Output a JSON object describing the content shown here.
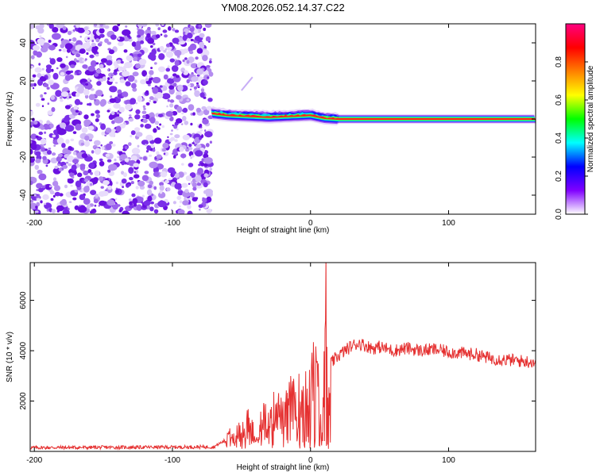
{
  "title": "YM08.2026.052.14.37.C22",
  "chart_data": [
    {
      "type": "heatmap",
      "name": "spectrogram",
      "xlabel": "Height of straight line (km)",
      "ylabel": "Frequency (Hz)",
      "xlim": [
        -203,
        163
      ],
      "ylim": [
        -50,
        50
      ],
      "x_ticks": [
        -200,
        -100,
        0,
        100
      ],
      "x_tick_labels": [
        "-200",
        "-100",
        "0",
        "100"
      ],
      "y_ticks": [
        -40,
        -20,
        0,
        20,
        40
      ],
      "y_tick_labels": [
        "-40",
        "-20",
        "0",
        "20",
        "40"
      ],
      "noise_region_x": [
        -203,
        -72
      ],
      "signal_region_x": [
        -72,
        163
      ],
      "signal_center_frequency_hz": [
        {
          "x": -72,
          "f": 3
        },
        {
          "x": -60,
          "f": 2
        },
        {
          "x": -45,
          "f": 1.5
        },
        {
          "x": -30,
          "f": 1
        },
        {
          "x": -15,
          "f": 1.5
        },
        {
          "x": 0,
          "f": 2
        },
        {
          "x": 10,
          "f": 0.5
        },
        {
          "x": 20,
          "f": 0
        },
        {
          "x": 163,
          "f": 0
        }
      ],
      "colorbar": {
        "label": "Normalized spectral amplitude",
        "range": [
          0,
          1
        ],
        "ticks": [
          0.0,
          0.2,
          0.4,
          0.6,
          0.8
        ],
        "tick_labels": [
          "0.0",
          "0.2",
          "0.4",
          "0.6",
          "0.8"
        ],
        "colors": [
          "#ffffff",
          "#8000ff",
          "#0000ff",
          "#00ffff",
          "#00ff00",
          "#ffff00",
          "#ff8000",
          "#ff0000",
          "#ff0080"
        ]
      }
    },
    {
      "type": "line",
      "name": "snr",
      "xlabel": "Height of straight line (km)",
      "ylabel": "SNR (10 * v/v)",
      "xlim": [
        -203,
        163
      ],
      "ylim": [
        0,
        7500
      ],
      "x_ticks": [
        -200,
        -100,
        0,
        100
      ],
      "x_tick_labels": [
        "-200",
        "-100",
        "0",
        "100"
      ],
      "y_ticks": [
        2000,
        4000,
        6000
      ],
      "y_tick_labels": [
        "2000",
        "4000",
        "6000"
      ],
      "color": "#e53030",
      "series": [
        {
          "name": "SNR",
          "x": [
            -203,
            -150,
            -100,
            -70,
            -60,
            -55,
            -50,
            -45,
            -40,
            -35,
            -30,
            -25,
            -20,
            -15,
            -10,
            -5,
            0,
            5,
            8,
            10,
            11,
            12,
            13,
            15,
            20,
            25,
            30,
            35,
            40,
            45,
            50,
            60,
            70,
            80,
            90,
            100,
            110,
            120,
            130,
            140,
            150,
            163
          ],
          "y": [
            150,
            160,
            170,
            180,
            500,
            900,
            700,
            1200,
            800,
            1500,
            1000,
            1800,
            1300,
            2000,
            1800,
            2500,
            3000,
            2800,
            500,
            3000,
            7200,
            4000,
            1500,
            3500,
            3800,
            4000,
            4200,
            4300,
            4200,
            4100,
            4150,
            4000,
            4100,
            4000,
            4050,
            3950,
            3900,
            3850,
            3700,
            3650,
            3600,
            3550
          ]
        }
      ]
    }
  ]
}
